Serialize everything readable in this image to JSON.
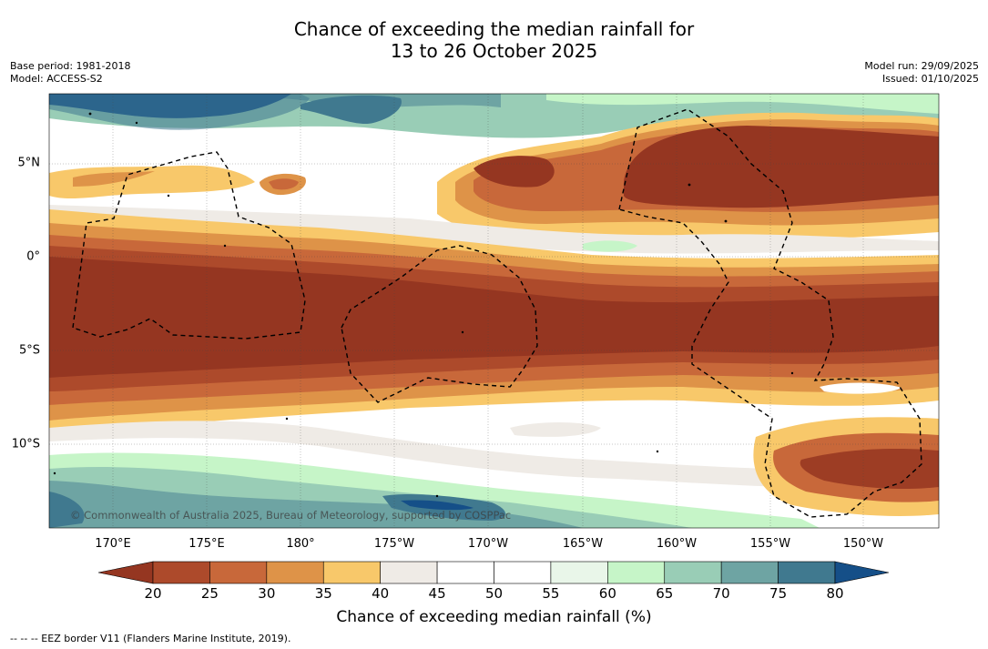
{
  "title_line1": "Chance of exceeding the median rainfall for",
  "title_line2": "13 to 26 October 2025",
  "base_period": "Base period: 1981-2018",
  "model": "Model: ACCESS-S2",
  "model_run": "Model run: 29/09/2025",
  "issued": "Issued: 01/10/2025",
  "copyright": "© Commonwealth of Australia 2025, Bureau of Meteorology, supported by COSPPac",
  "lon_labels": [
    "170°E",
    "175°E",
    "180°",
    "175°W",
    "170°W",
    "165°W",
    "160°W",
    "155°W",
    "150°W"
  ],
  "lat_labels": [
    "5°N",
    "0°",
    "5°S",
    "10°S"
  ],
  "colorbar": {
    "ticks": [
      "20",
      "25",
      "30",
      "35",
      "40",
      "45",
      "50",
      "55",
      "60",
      "65",
      "70",
      "75",
      "80"
    ],
    "colors": [
      "#953621",
      "#ad4a2b",
      "#c8683a",
      "#de9348",
      "#f8c86a",
      "#efebe6",
      "#ffffff",
      "#ffffff",
      "#e9f6e9",
      "#c6f5c8",
      "#99cdb6",
      "#6ea4a3",
      "#40798f",
      "#154f88"
    ],
    "title": "Chance of exceeding median rainfall (%)"
  },
  "footnote": "--  --  -- EEZ border V11 (Flanders Marine Institute, 2019)."
}
